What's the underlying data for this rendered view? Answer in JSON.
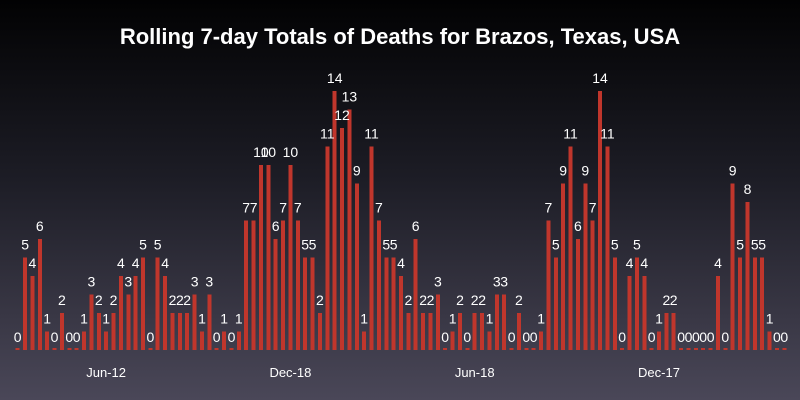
{
  "chart_data": {
    "type": "bar",
    "title": "Rolling 7-day Totals of Deaths for Brazos, Texas, USA",
    "xlabel": "",
    "ylabel": "",
    "ylim": [
      0,
      14
    ],
    "grid": false,
    "legend": "none",
    "bar_color": "#c0362c",
    "text_color": "#ffffff",
    "tick_labels": [
      {
        "label": "Jun-12",
        "index": 12
      },
      {
        "label": "Dec-18",
        "index": 37
      },
      {
        "label": "Jun-18",
        "index": 62
      },
      {
        "label": "Dec-17",
        "index": 87
      }
    ],
    "values": [
      0,
      5,
      4,
      6,
      1,
      0,
      2,
      0,
      0,
      1,
      3,
      2,
      1,
      2,
      4,
      3,
      4,
      5,
      0,
      5,
      4,
      2,
      2,
      2,
      3,
      1,
      3,
      0,
      1,
      0,
      1,
      7,
      7,
      10,
      10,
      6,
      7,
      10,
      7,
      5,
      5,
      2,
      11,
      14,
      12,
      13,
      9,
      1,
      11,
      7,
      5,
      5,
      4,
      2,
      6,
      2,
      2,
      3,
      0,
      1,
      2,
      0,
      2,
      2,
      1,
      3,
      3,
      0,
      2,
      0,
      0,
      1,
      7,
      5,
      9,
      11,
      6,
      9,
      7,
      14,
      11,
      5,
      0,
      4,
      5,
      4,
      0,
      1,
      2,
      2,
      0,
      0,
      0,
      0,
      0,
      4,
      0,
      9,
      5,
      8,
      5,
      5,
      1,
      0,
      0
    ]
  }
}
